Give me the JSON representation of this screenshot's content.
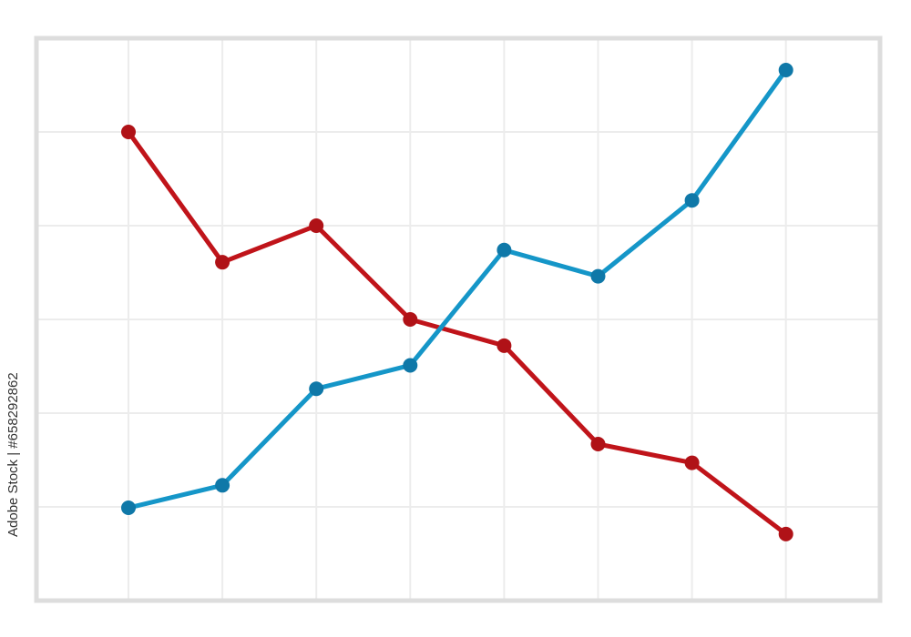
{
  "chart_data": {
    "type": "line",
    "title": "",
    "xlabel": "",
    "ylabel": "",
    "x": [
      1,
      2,
      3,
      4,
      5,
      6,
      7,
      8
    ],
    "xlim": [
      0,
      9
    ],
    "ylim": [
      0,
      6
    ],
    "grid": true,
    "legend": "none",
    "series": [
      {
        "color": "#c0141a",
        "marker_color": "#b01217",
        "values": [
          5.0,
          3.61,
          4.0,
          3.0,
          2.72,
          1.67,
          1.47,
          0.71
        ]
      },
      {
        "color": "#1596c8",
        "marker_color": "#0f78a8",
        "values": [
          0.99,
          1.23,
          2.26,
          2.51,
          3.74,
          3.46,
          4.27,
          5.66
        ]
      }
    ],
    "frame_color": "#dddddd",
    "grid_color": "#ececec"
  },
  "watermark": "Adobe Stock | #658292862"
}
